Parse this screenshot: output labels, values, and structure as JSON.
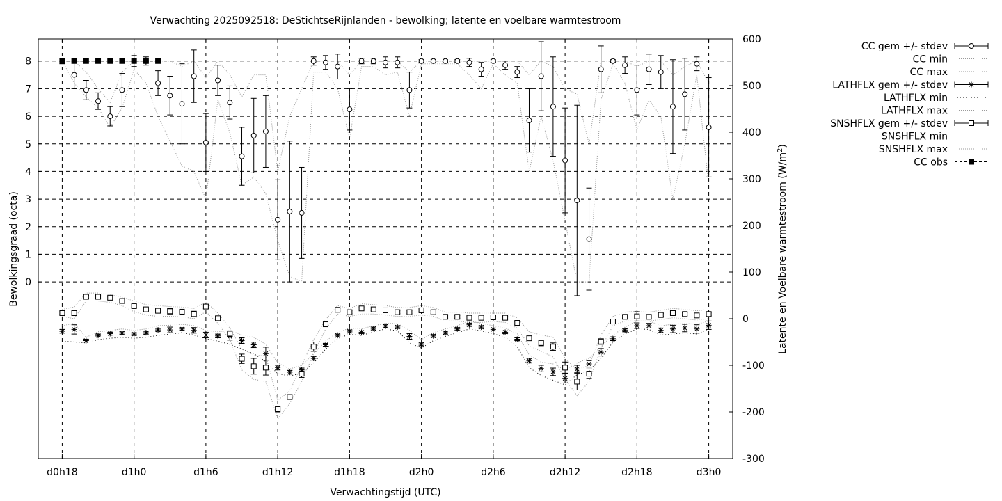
{
  "chart_data": {
    "type": "line",
    "title": "Verwachting 2025092518: DeStichtseRijnlanden - bewolking; latente en voelbare warmtestroom",
    "xlabel": "Verwachtingstijd (UTC)",
    "ylabel": "Bewolkingsgraad (octa)",
    "y2label_text": "Latente en Voelbare warmtestroom (W/m",
    "y2label_sup": "2",
    "y2label_close": ")",
    "x_unit": "hours since d0h18",
    "xlim": [
      -2,
      56
    ],
    "x_ticks": [
      {
        "x": 0,
        "label": "d0h18"
      },
      {
        "x": 6,
        "label": "d1h0"
      },
      {
        "x": 12,
        "label": "d1h6"
      },
      {
        "x": 18,
        "label": "d1h12"
      },
      {
        "x": 24,
        "label": "d1h18"
      },
      {
        "x": 30,
        "label": "d2h0"
      },
      {
        "x": 36,
        "label": "d2h6"
      },
      {
        "x": 42,
        "label": "d2h12"
      },
      {
        "x": 48,
        "label": "d2h18"
      },
      {
        "x": 54,
        "label": "d3h0"
      }
    ],
    "ylim": [
      -6.4,
      8.8
    ],
    "y_ticks": [
      {
        "v": 0,
        "label": "0"
      },
      {
        "v": 1,
        "label": "1"
      },
      {
        "v": 2,
        "label": "2"
      },
      {
        "v": 3,
        "label": "3"
      },
      {
        "v": 4,
        "label": "4"
      },
      {
        "v": 5,
        "label": "5"
      },
      {
        "v": 6,
        "label": "6"
      },
      {
        "v": 7,
        "label": "7"
      },
      {
        "v": 8,
        "label": "8"
      }
    ],
    "y2lim": [
      -300,
      600
    ],
    "y2_ticks": [
      {
        "v": -300,
        "label": "-300"
      },
      {
        "v": -200,
        "label": "-200"
      },
      {
        "v": -100,
        "label": "-100"
      },
      {
        "v": 0,
        "label": "0"
      },
      {
        "v": 100,
        "label": "100"
      },
      {
        "v": 200,
        "label": "200"
      },
      {
        "v": 300,
        "label": "300"
      },
      {
        "v": 400,
        "label": "400"
      },
      {
        "v": 500,
        "label": "500"
      },
      {
        "v": 600,
        "label": "600"
      }
    ],
    "grid": "dashed at x ticks and y ticks 0-8",
    "legend_position": "outside-right",
    "legend": [
      {
        "label": "CC gem +/- stdev",
        "style": "errbar-circle"
      },
      {
        "label": "CC min",
        "style": "dotted"
      },
      {
        "label": "CC max",
        "style": "dotted"
      },
      {
        "label": "LATHFLX gem +/- stdev",
        "style": "errbar-star"
      },
      {
        "label": "LATHFLX min",
        "style": "dotted-dark"
      },
      {
        "label": "LATHFLX max",
        "style": "dotted"
      },
      {
        "label": "SNSHFLX gem +/- stdev",
        "style": "errbar-square"
      },
      {
        "label": "SNSHFLX min",
        "style": "dotted"
      },
      {
        "label": "SNSHFLX max",
        "style": "dotted"
      },
      {
        "label": "CC obs",
        "style": "filled-square"
      }
    ],
    "x": [
      0,
      1,
      2,
      3,
      4,
      5,
      6,
      7,
      8,
      9,
      10,
      11,
      12,
      13,
      14,
      15,
      16,
      17,
      18,
      19,
      20,
      21,
      22,
      23,
      24,
      25,
      26,
      27,
      28,
      29,
      30,
      31,
      32,
      33,
      34,
      35,
      36,
      37,
      38,
      39,
      40,
      41,
      42,
      43,
      44,
      45,
      46,
      47,
      48,
      49,
      50,
      51,
      52,
      53,
      54
    ],
    "series": [
      {
        "name": "CC gem +/- stdev",
        "axis": "y1",
        "values": [
          8,
          7.5,
          6.95,
          6.55,
          6.0,
          6.95,
          8.0,
          8.0,
          7.2,
          6.75,
          6.45,
          7.45,
          5.05,
          7.3,
          6.5,
          4.55,
          5.3,
          5.45,
          2.25,
          2.55,
          2.5,
          8.0,
          7.95,
          7.8,
          6.25,
          8.0,
          8.0,
          7.95,
          7.95,
          6.95,
          8.0,
          8.0,
          8.0,
          8.0,
          7.95,
          7.7,
          8.0,
          7.85,
          7.6,
          5.85,
          7.45,
          6.35,
          4.4,
          2.95,
          1.55,
          7.7,
          8.0,
          7.85,
          6.95,
          7.7,
          7.6,
          6.35,
          6.8,
          7.9,
          5.6
        ],
        "stdev": [
          0.1,
          0.5,
          0.35,
          0.3,
          0.35,
          0.6,
          0.2,
          0.15,
          0.45,
          0.7,
          1.45,
          0.95,
          1.05,
          0.55,
          0.6,
          1.05,
          1.35,
          1.3,
          1.45,
          2.55,
          1.65,
          0.15,
          0.25,
          0.45,
          0.75,
          0.1,
          0.1,
          0.2,
          0.2,
          0.65,
          0.05,
          0.05,
          0.05,
          0.05,
          0.15,
          0.25,
          0.05,
          0.15,
          0.2,
          1.15,
          1.25,
          1.8,
          1.9,
          3.45,
          1.85,
          0.85,
          0.05,
          0.3,
          0.9,
          0.55,
          0.6,
          1.7,
          1.3,
          0.25,
          1.8
        ]
      },
      {
        "name": "CC min",
        "axis": "y1",
        "values": [
          8,
          7.2,
          6.7,
          6.3,
          5.6,
          6.3,
          7.7,
          7.2,
          6.0,
          5.1,
          4.2,
          4.0,
          3.0,
          6.6,
          5.4,
          3.5,
          3.8,
          3.2,
          1.5,
          0.2,
          0.0,
          7.6,
          7.6,
          7.0,
          5.2,
          7.8,
          7.8,
          7.5,
          7.6,
          6.0,
          7.9,
          7.9,
          7.9,
          7.9,
          7.5,
          7.0,
          7.9,
          7.5,
          7.2,
          4.0,
          6.0,
          4.4,
          2.2,
          0.0,
          0.0,
          6.6,
          7.9,
          7.2,
          5.5,
          6.6,
          6.0,
          3.0,
          5.0,
          7.5,
          3.5
        ]
      },
      {
        "name": "CC max",
        "axis": "y1",
        "values": [
          8,
          8,
          7.6,
          7.0,
          6.5,
          7.6,
          8,
          8,
          8,
          8,
          7.8,
          8,
          7.4,
          8,
          7.5,
          6.7,
          7.5,
          7.5,
          4.0,
          6.0,
          7.0,
          8,
          8,
          8,
          7.5,
          8,
          8,
          8,
          8,
          7.6,
          8,
          8,
          8,
          8,
          8,
          8,
          8,
          8,
          8,
          7.5,
          8,
          7.8,
          7.0,
          6.8,
          5.0,
          8,
          8,
          8,
          7.8,
          8,
          8,
          7.5,
          7.8,
          8,
          7.2
        ]
      },
      {
        "name": "LATHFLX gem +/- stdev",
        "axis": "y2",
        "values": [
          -27,
          -23,
          -47,
          -36,
          -32,
          -31,
          -33,
          -30,
          -24,
          -24,
          -22,
          -25,
          -35,
          -37,
          -38,
          -47,
          -56,
          -75,
          -105,
          -115,
          -110,
          -85,
          -56,
          -36,
          -27,
          -29,
          -21,
          -16,
          -18,
          -38,
          -55,
          -37,
          -30,
          -22,
          -13,
          -18,
          -23,
          -29,
          -44,
          -90,
          -107,
          -114,
          -128,
          -108,
          -97,
          -72,
          -43,
          -25,
          -15,
          -15,
          -25,
          -22,
          -20,
          -22,
          -14
        ],
        "stdev": [
          4,
          10,
          3,
          3,
          3,
          3,
          3,
          3,
          3,
          6,
          3,
          6,
          6,
          4,
          8,
          6,
          6,
          14,
          5,
          4,
          4,
          4,
          3,
          3,
          3,
          3,
          3,
          3,
          3,
          6,
          3,
          3,
          3,
          3,
          3,
          3,
          3,
          3,
          3,
          5,
          7,
          8,
          10,
          8,
          7,
          8,
          4,
          3,
          6,
          5,
          5,
          8,
          8,
          9,
          9
        ]
      },
      {
        "name": "LATHFLX min",
        "axis": "y2",
        "values": [
          -48,
          -50,
          -52,
          -45,
          -42,
          -40,
          -42,
          -40,
          -36,
          -33,
          -30,
          -35,
          -43,
          -48,
          -55,
          -65,
          -75,
          -92,
          -118,
          -123,
          -117,
          -95,
          -65,
          -43,
          -33,
          -36,
          -28,
          -22,
          -26,
          -52,
          -63,
          -47,
          -38,
          -30,
          -22,
          -26,
          -32,
          -40,
          -60,
          -105,
          -122,
          -132,
          -142,
          -120,
          -112,
          -85,
          -50,
          -33,
          -22,
          -23,
          -35,
          -33,
          -30,
          -33,
          -22
        ]
      },
      {
        "name": "LATHFLX max",
        "axis": "y2",
        "values": [
          -15,
          -10,
          -40,
          -28,
          -25,
          -22,
          -25,
          -22,
          -15,
          -14,
          -12,
          -15,
          -25,
          -28,
          -25,
          -35,
          -40,
          -55,
          -95,
          -108,
          -100,
          -75,
          -48,
          -30,
          -20,
          -22,
          -15,
          -10,
          -10,
          -25,
          -45,
          -30,
          -22,
          -15,
          -5,
          -10,
          -15,
          -20,
          -32,
          -78,
          -93,
          -97,
          -110,
          -95,
          -85,
          -60,
          -35,
          -18,
          -5,
          -5,
          -15,
          -12,
          -10,
          -12,
          -5
        ]
      },
      {
        "name": "SNSHFLX gem +/- stdev",
        "axis": "y2",
        "values": [
          12,
          12,
          47,
          47,
          45,
          38,
          27,
          20,
          17,
          16,
          15,
          10,
          26,
          1,
          -32,
          -86,
          -102,
          -105,
          -194,
          -168,
          -118,
          -60,
          -12,
          19,
          14,
          22,
          20,
          18,
          14,
          14,
          18,
          14,
          4,
          4,
          2,
          2,
          3,
          2,
          -9,
          -42,
          -52,
          -60,
          -105,
          -135,
          -118,
          -49,
          -6,
          4,
          5,
          4,
          8,
          12,
          10,
          7,
          10
        ],
        "stdev": [
          3,
          5,
          3,
          3,
          3,
          3,
          3,
          3,
          3,
          6,
          5,
          6,
          4,
          4,
          6,
          10,
          17,
          16,
          6,
          5,
          8,
          10,
          3,
          3,
          3,
          3,
          3,
          3,
          3,
          3,
          3,
          3,
          3,
          3,
          3,
          3,
          3,
          3,
          3,
          3,
          6,
          8,
          12,
          18,
          10,
          6,
          3,
          3,
          10,
          3,
          3,
          3,
          3,
          3,
          3
        ]
      },
      {
        "name": "SNSHFLX min",
        "axis": "y2",
        "values": [
          5,
          0,
          38,
          38,
          35,
          28,
          15,
          8,
          5,
          5,
          4,
          0,
          15,
          -10,
          -45,
          -110,
          -130,
          -135,
          -215,
          -182,
          -135,
          -75,
          -22,
          10,
          5,
          10,
          10,
          8,
          5,
          5,
          8,
          5,
          -5,
          -5,
          -8,
          -8,
          -6,
          -8,
          -20,
          -58,
          -70,
          -82,
          -130,
          -165,
          -135,
          -63,
          -15,
          -5,
          -5,
          -5,
          -2,
          2,
          0,
          -3,
          0
        ]
      },
      {
        "name": "SNSHFLX max",
        "axis": "y2",
        "values": [
          20,
          25,
          55,
          55,
          52,
          46,
          38,
          30,
          28,
          26,
          25,
          22,
          36,
          12,
          -20,
          -65,
          -78,
          -80,
          -175,
          -155,
          -100,
          -45,
          -2,
          28,
          22,
          32,
          30,
          28,
          24,
          24,
          28,
          24,
          14,
          14,
          12,
          12,
          12,
          12,
          2,
          -28,
          -35,
          -40,
          -85,
          -110,
          -100,
          -35,
          5,
          14,
          16,
          14,
          18,
          22,
          20,
          17,
          20
        ]
      },
      {
        "name": "CC obs",
        "axis": "y1",
        "x": [
          0,
          1,
          2,
          3,
          4,
          5,
          6,
          7,
          8
        ],
        "values": [
          8,
          8,
          8,
          8,
          8,
          8,
          8,
          8,
          8
        ]
      }
    ]
  }
}
